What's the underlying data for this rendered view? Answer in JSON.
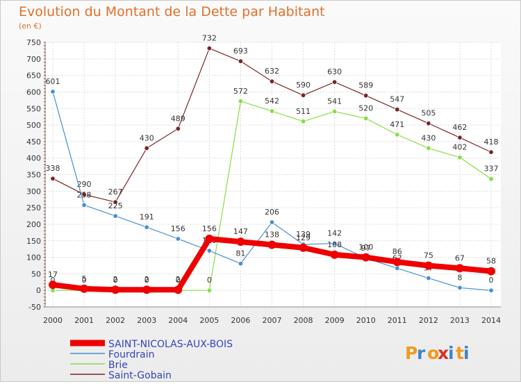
{
  "chart_data": {
    "type": "line",
    "title": "Evolution du Montant de la Dette par Habitant",
    "subtitle": "(en €)",
    "x": [
      2000,
      2001,
      2002,
      2003,
      2004,
      2005,
      2006,
      2007,
      2008,
      2009,
      2010,
      2011,
      2012,
      2013,
      2014
    ],
    "ylim": [
      -50,
      750
    ],
    "yticks": [
      -50,
      0,
      50,
      100,
      150,
      200,
      250,
      300,
      350,
      400,
      450,
      500,
      550,
      600,
      650,
      700,
      750
    ],
    "grid": true,
    "legend_position": "bottom-left",
    "series": [
      {
        "name": "Saint-Gobain",
        "color": "#7a2424",
        "values": [
          338,
          290,
          267,
          430,
          489,
          732,
          693,
          632,
          590,
          630,
          589,
          547,
          505,
          462,
          418
        ]
      },
      {
        "name": "Brie",
        "color": "#88dd44",
        "values": [
          0,
          0,
          0,
          0,
          0,
          0,
          572,
          542,
          511,
          541,
          520,
          471,
          430,
          402,
          337
        ]
      },
      {
        "name": "Fourdrain",
        "color": "#4a8fd0",
        "values": [
          601,
          258,
          225,
          191,
          156,
          120,
          81,
          206,
          139,
          142,
          97,
          67,
          37,
          8,
          0
        ]
      },
      {
        "name": "SAINT-NICOLAS-AUX-BOIS",
        "color": "#ee0000",
        "values": [
          17,
          5,
          2,
          2,
          2,
          156,
          147,
          138,
          129,
          108,
          100,
          86,
          75,
          67,
          58
        ]
      }
    ]
  },
  "legend": [
    {
      "name": "SAINT-NICOLAS-AUX-BOIS",
      "color": "#ee0000"
    },
    {
      "name": "Fourdrain",
      "color": "#4a8fd0"
    },
    {
      "name": "Brie",
      "color": "#88dd44"
    },
    {
      "name": "Saint-Gobain",
      "color": "#7a2424"
    }
  ],
  "logo": {
    "text": "Proxiti"
  }
}
